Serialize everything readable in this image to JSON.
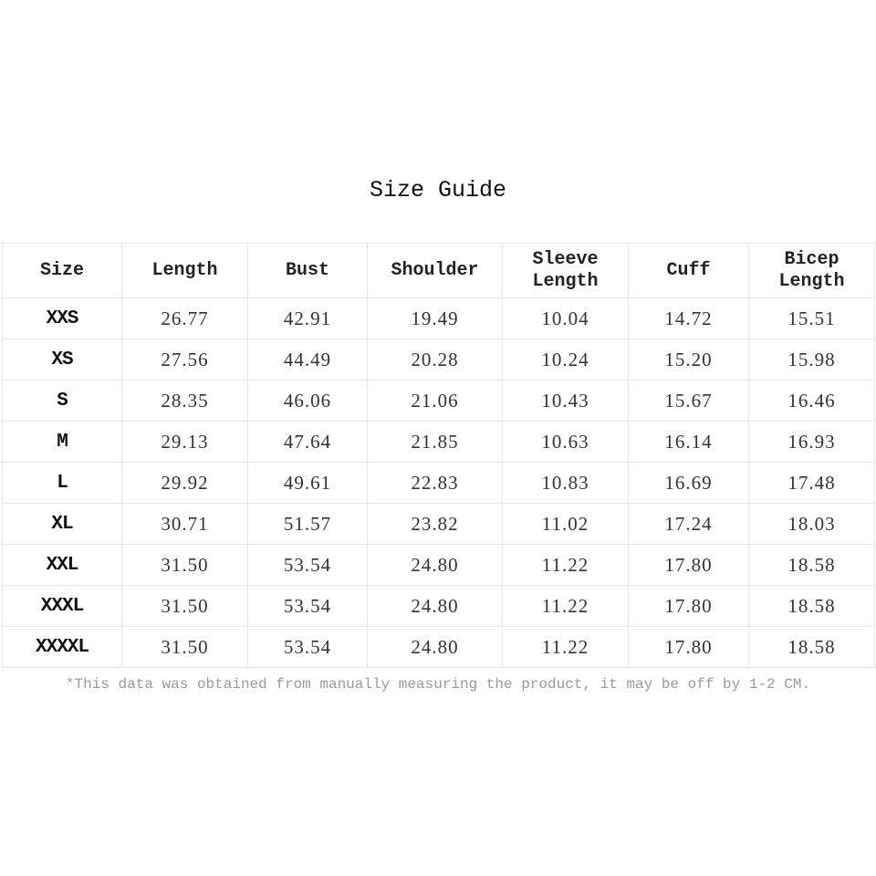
{
  "title": "Size Guide",
  "table": {
    "headers": [
      "Size",
      "Length",
      "Bust",
      "Shoulder",
      "Sleeve\nLength",
      "Cuff",
      "Bicep\nLength"
    ],
    "rows": [
      [
        "XXS",
        "26.77",
        "42.91",
        "19.49",
        "10.04",
        "14.72",
        "15.51"
      ],
      [
        "XS",
        "27.56",
        "44.49",
        "20.28",
        "10.24",
        "15.20",
        "15.98"
      ],
      [
        "S",
        "28.35",
        "46.06",
        "21.06",
        "10.43",
        "15.67",
        "16.46"
      ],
      [
        "M",
        "29.13",
        "47.64",
        "21.85",
        "10.63",
        "16.14",
        "16.93"
      ],
      [
        "L",
        "29.92",
        "49.61",
        "22.83",
        "10.83",
        "16.69",
        "17.48"
      ],
      [
        "XL",
        "30.71",
        "51.57",
        "23.82",
        "11.02",
        "17.24",
        "18.03"
      ],
      [
        "XXL",
        "31.50",
        "53.54",
        "24.80",
        "11.22",
        "17.80",
        "18.58"
      ],
      [
        "XXXL",
        "31.50",
        "53.54",
        "24.80",
        "11.22",
        "17.80",
        "18.58"
      ],
      [
        "XXXXL",
        "31.50",
        "53.54",
        "24.80",
        "11.22",
        "17.80",
        "18.58"
      ]
    ]
  },
  "note": "*This data was obtained from manually measuring the product, it may be off by 1-2 CM."
}
